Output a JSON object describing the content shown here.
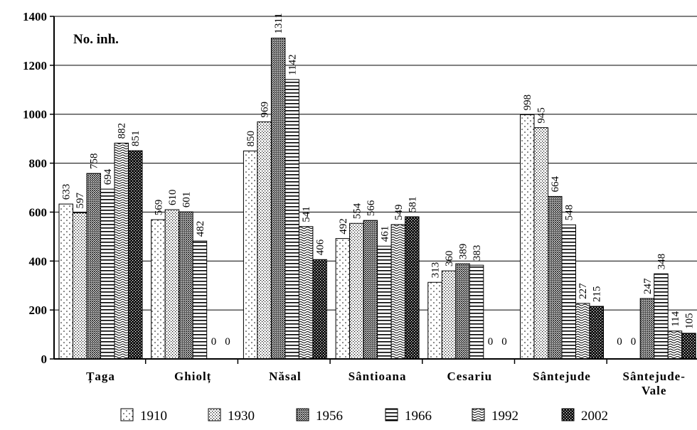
{
  "chart_data": {
    "type": "bar",
    "unit_label": "No. inh.",
    "categories": [
      "Țaga",
      "Ghiolț",
      "Năsal",
      "Sântioana",
      "Cesariu",
      "Sântejude",
      "Sântejude-Vale"
    ],
    "series": [
      {
        "name": "1910",
        "values": [
          633,
          569,
          850,
          492,
          313,
          998,
          0
        ]
      },
      {
        "name": "1930",
        "values": [
          597,
          610,
          969,
          554,
          360,
          945,
          0
        ]
      },
      {
        "name": "1956",
        "values": [
          758,
          601,
          1311,
          566,
          389,
          664,
          247
        ]
      },
      {
        "name": "1966",
        "values": [
          694,
          482,
          1142,
          461,
          383,
          548,
          348
        ]
      },
      {
        "name": "1992",
        "values": [
          882,
          0,
          541,
          549,
          0,
          227,
          114
        ]
      },
      {
        "name": "2002",
        "values": [
          851,
          0,
          406,
          581,
          0,
          215,
          105
        ]
      }
    ],
    "yticks": [
      0,
      200,
      400,
      600,
      800,
      1000,
      1200,
      1400
    ],
    "ylim": [
      0,
      1400
    ],
    "grid": true,
    "legend_position": "bottom"
  }
}
